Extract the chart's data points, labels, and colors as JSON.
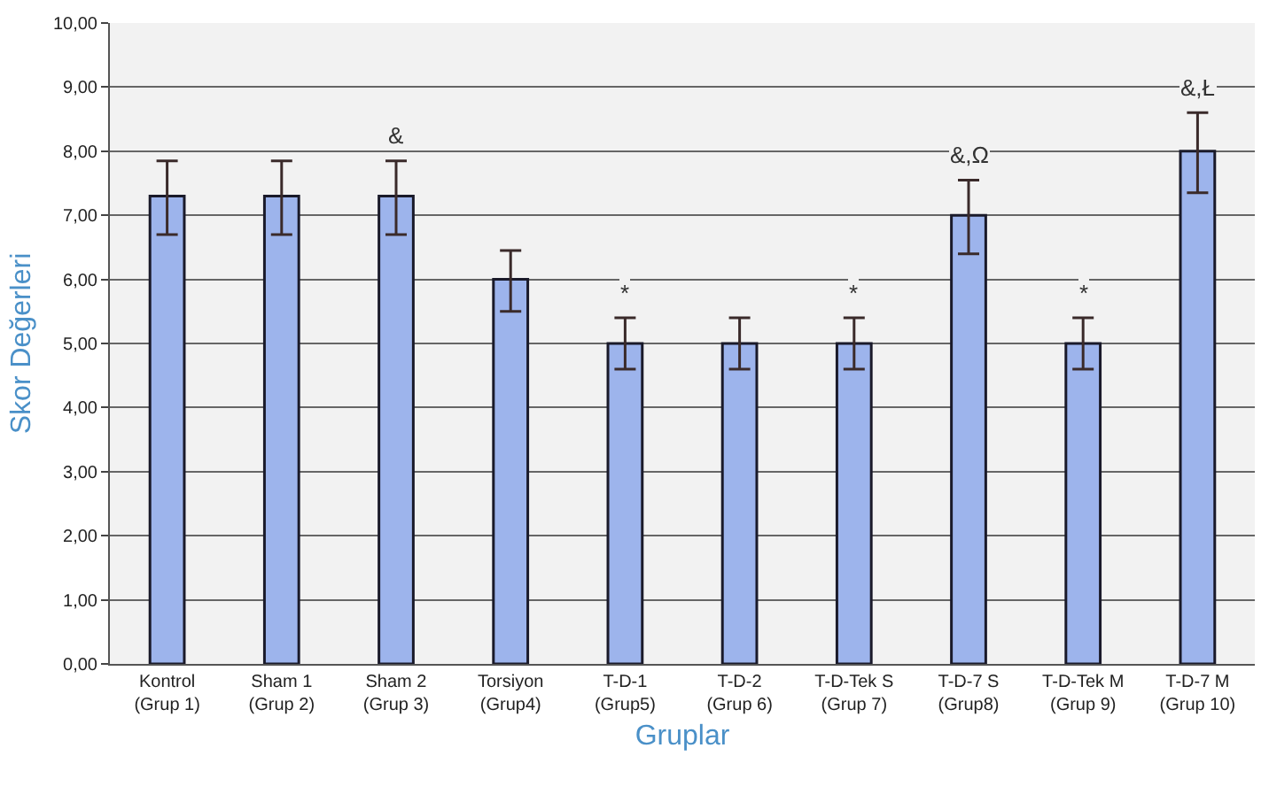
{
  "chart_data": {
    "type": "bar",
    "xlabel": "Gruplar",
    "ylabel": "Skor Değerleri",
    "categories": [
      "Kontrol\n(Grup 1)",
      "Sham 1\n(Grup 2)",
      "Sham 2\n(Grup 3)",
      "Torsiyon\n(Grup4)",
      "T-D-1\n(Grup5)",
      "T-D-2\n(Grup 6)",
      "T-D-Tek S\n(Grup 7)",
      "T-D-7 S\n(Grup8)",
      "T-D-Tek M\n(Grup 9)",
      "T-D-7 M\n(Grup 10)"
    ],
    "series": [
      {
        "color": "#9db4ec",
        "values": [
          7.3,
          7.3,
          7.3,
          6.0,
          5.0,
          5.0,
          5.0,
          7.0,
          5.0,
          8.0
        ],
        "errors": [
          [
            6.7,
            7.85
          ],
          [
            6.7,
            7.85
          ],
          [
            6.7,
            7.85
          ],
          [
            5.5,
            6.45
          ],
          [
            4.6,
            5.4
          ],
          [
            4.6,
            5.4
          ],
          [
            4.6,
            5.4
          ],
          [
            6.4,
            7.55
          ],
          [
            4.6,
            5.4
          ],
          [
            7.35,
            8.6
          ]
        ]
      }
    ],
    "ylim": [
      0,
      10
    ],
    "yticks": [
      {
        "value": 0,
        "label": "0,00"
      },
      {
        "value": 1,
        "label": "1,00"
      },
      {
        "value": 2,
        "label": "2,00"
      },
      {
        "value": 3,
        "label": "3,00"
      },
      {
        "value": 4,
        "label": "4,00"
      },
      {
        "value": 5,
        "label": "5,00"
      },
      {
        "value": 6,
        "label": "6,00"
      },
      {
        "value": 7,
        "label": "7,00"
      },
      {
        "value": 8,
        "label": "8,00"
      },
      {
        "value": 9,
        "label": "9,00"
      },
      {
        "value": 10,
        "label": "10,00"
      }
    ],
    "grid": "y",
    "annotations": [
      {
        "text": "&",
        "x": "Sham 2\n(Grup 3)",
        "y": 7.3
      },
      {
        "text": "*",
        "x": "T-D-1\n(Grup5)",
        "y": 5.0
      },
      {
        "text": "*",
        "x": "T-D-Tek S\n(Grup 7)",
        "y": 5.0
      },
      {
        "text": "&,Ω",
        "x": "T-D-7 S\n(Grup8)",
        "y": 7.0
      },
      {
        "text": "*",
        "x": "T-D-Tek M\n(Grup 9)",
        "y": 5.0
      },
      {
        "text": "&,Ł",
        "x": "T-D-7 M\n(Grup 10)",
        "y": 8.0
      }
    ]
  }
}
